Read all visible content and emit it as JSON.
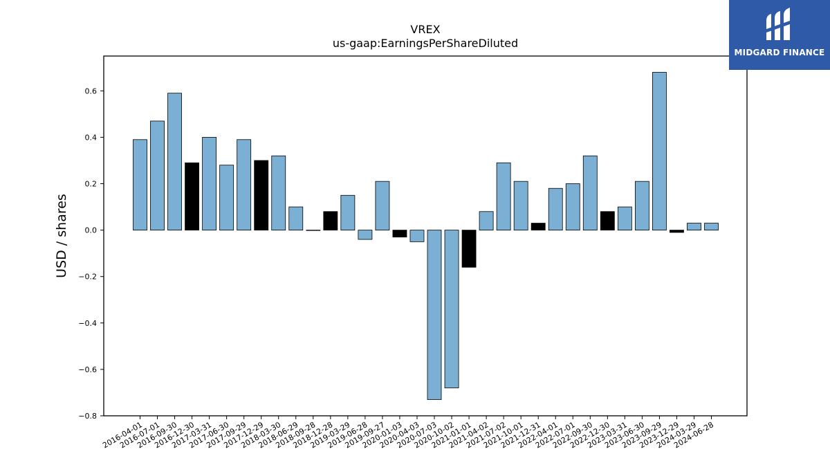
{
  "logo": {
    "text": "MIDGARD FINANCE",
    "bg_color": "#2e5aa8",
    "icon": "midgard-m-logo-icon"
  },
  "chart_data": {
    "type": "bar",
    "title": "VREX",
    "subtitle": "us-gaap:EarningsPerShareDiluted",
    "xlabel": "",
    "ylabel": "USD / shares",
    "ylim": [
      -0.8,
      0.75
    ],
    "yticks": [
      -0.8,
      -0.6,
      -0.4,
      -0.2,
      0.0,
      0.2,
      0.4,
      0.6
    ],
    "grid": false,
    "colors": {
      "quarterly": "#7bafd4",
      "annual": "#000000",
      "edge": "#000000"
    },
    "categories": [
      "2016-04-01",
      "2016-07-01",
      "2016-09-30",
      "2016-12-30",
      "2017-03-31",
      "2017-06-30",
      "2017-09-29",
      "2017-12-29",
      "2018-03-30",
      "2018-06-29",
      "2018-09-28",
      "2018-12-28",
      "2019-03-29",
      "2019-06-28",
      "2019-09-27",
      "2020-01-03",
      "2020-04-03",
      "2020-07-03",
      "2020-10-02",
      "2021-01-01",
      "2021-04-02",
      "2021-07-02",
      "2021-10-01",
      "2021-12-31",
      "2022-04-01",
      "2022-07-01",
      "2022-09-30",
      "2022-12-30",
      "2023-03-31",
      "2023-06-30",
      "2023-09-29",
      "2023-12-29",
      "2024-03-29",
      "2024-06-28"
    ],
    "values": [
      0.39,
      0.47,
      0.59,
      0.29,
      0.4,
      0.28,
      0.39,
      0.3,
      0.32,
      0.1,
      0.0,
      0.08,
      0.15,
      -0.04,
      0.21,
      -0.03,
      -0.05,
      -0.73,
      -0.68,
      -0.16,
      0.08,
      0.29,
      0.21,
      0.03,
      0.18,
      0.2,
      0.32,
      0.08,
      0.1,
      0.21,
      0.68,
      -0.01,
      0.03,
      0.03
    ],
    "bar_color_keys": [
      "quarterly",
      "quarterly",
      "quarterly",
      "annual",
      "quarterly",
      "quarterly",
      "quarterly",
      "annual",
      "quarterly",
      "quarterly",
      "quarterly",
      "annual",
      "quarterly",
      "quarterly",
      "quarterly",
      "annual",
      "quarterly",
      "quarterly",
      "quarterly",
      "annual",
      "quarterly",
      "quarterly",
      "quarterly",
      "annual",
      "quarterly",
      "quarterly",
      "quarterly",
      "annual",
      "quarterly",
      "quarterly",
      "quarterly",
      "annual",
      "quarterly",
      "quarterly"
    ]
  }
}
